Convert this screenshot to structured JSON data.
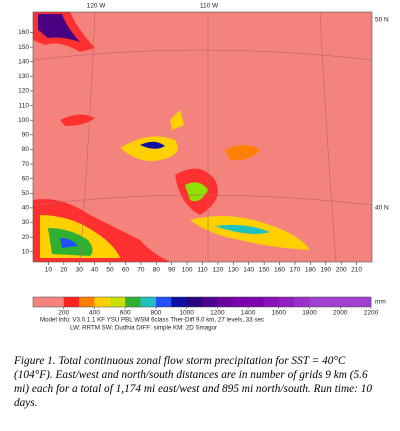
{
  "figure": {
    "map": {
      "top_labels": [
        "120 W",
        "110 W"
      ],
      "right_labels": [
        "50 N",
        "40 N"
      ],
      "background": "#f4837d",
      "xlim": [
        0,
        220
      ],
      "ylim": [
        3,
        174
      ],
      "xticks": [
        10,
        20,
        30,
        40,
        50,
        60,
        70,
        80,
        90,
        100,
        110,
        120,
        130,
        140,
        150,
        160,
        170,
        180,
        190,
        200,
        210
      ],
      "yticks": [
        10,
        20,
        30,
        40,
        50,
        60,
        70,
        80,
        90,
        100,
        110,
        120,
        130,
        140,
        150,
        160
      ]
    },
    "colorbar": {
      "lim": [
        0,
        2200
      ],
      "ticks": [
        200,
        400,
        600,
        800,
        1000,
        1200,
        1400,
        1600,
        1800,
        2000,
        2200
      ],
      "unit": "mm",
      "colors": [
        "#f4837d",
        "#f4837d",
        "#ff2020",
        "#ff7f00",
        "#ffd000",
        "#c8e000",
        "#30b030",
        "#20c0c0",
        "#2050ff",
        "#1010a0",
        "#2a0080",
        "#500090",
        "#6a00a0",
        "#7a00b0",
        "#8000b0",
        "#8a10b8",
        "#9020c0",
        "#9a30c8",
        "#a040d0",
        "#a040d0",
        "#a040d0",
        "#a040d0"
      ]
    },
    "model_info": [
      "Model Info: V3.0.1.1 KF     YSU PBL  WSM 6class  Ther-Diff 9.0 km,  27 levels,  33 sec",
      "LW: RRTM SW: Dudhia  DIFF: simple KM: 2D Smagor"
    ],
    "caption": "Figure 1. Total continuous zonal flow storm precipitation for SST = 40°C (104°F). East/west and north/south distances are in number of grids 9 km (5.6 mi) each for a total of 1,174 mi east/west and 895 mi north/south. Run time: 10 days."
  }
}
